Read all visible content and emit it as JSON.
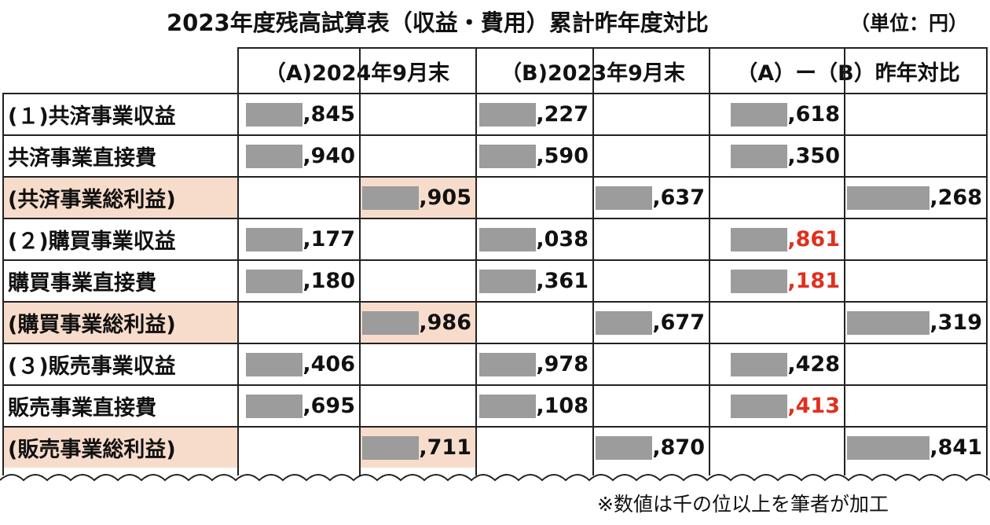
{
  "header": {
    "title": "2023年度残高試算表（収益・費用）累計昨年度対比",
    "unit": "（単位：円）"
  },
  "table": {
    "columns": [
      "（A)2024年9月末",
      "（B)2023年9月末",
      "（A）ー（B）昨年対比"
    ],
    "rows": [
      {
        "label": "(１)共済事業収益",
        "highlight": false,
        "cells": [
          ",845",
          null,
          ",227",
          null,
          ",618",
          null
        ]
      },
      {
        "label": "共済事業直接費",
        "highlight": false,
        "cells": [
          ",940",
          null,
          ",590",
          null,
          ",350",
          null
        ]
      },
      {
        "label": "(共済事業総利益)",
        "highlight": true,
        "cells": [
          null,
          ",905",
          null,
          ",637",
          null,
          ",268"
        ]
      },
      {
        "label": "(２)購買事業収益",
        "highlight": false,
        "cells": [
          ",177",
          null,
          ",038",
          null,
          {
            "text": ",861",
            "color": "#e0301e"
          },
          null
        ]
      },
      {
        "label": "購買事業直接費",
        "highlight": false,
        "cells": [
          ",180",
          null,
          ",361",
          null,
          {
            "text": ",181",
            "color": "#e0301e"
          },
          null
        ]
      },
      {
        "label": "(購買事業総利益)",
        "highlight": true,
        "cells": [
          null,
          ",986",
          null,
          ",677",
          null,
          ",319"
        ]
      },
      {
        "label": "(３)販売事業収益",
        "highlight": false,
        "cells": [
          ",406",
          null,
          ",978",
          null,
          ",428",
          null
        ]
      },
      {
        "label": "販売事業直接費",
        "highlight": false,
        "cells": [
          ",695",
          null,
          ",108",
          null,
          {
            "text": ",413",
            "color": "#e0301e"
          },
          null
        ]
      },
      {
        "label": "(販売事業総利益)",
        "highlight": true,
        "cells": [
          null,
          ",711",
          null,
          ",870",
          null,
          ",841"
        ]
      }
    ]
  },
  "footer": {
    "note": "※数値は千の位以上を筆者が加工"
  }
}
